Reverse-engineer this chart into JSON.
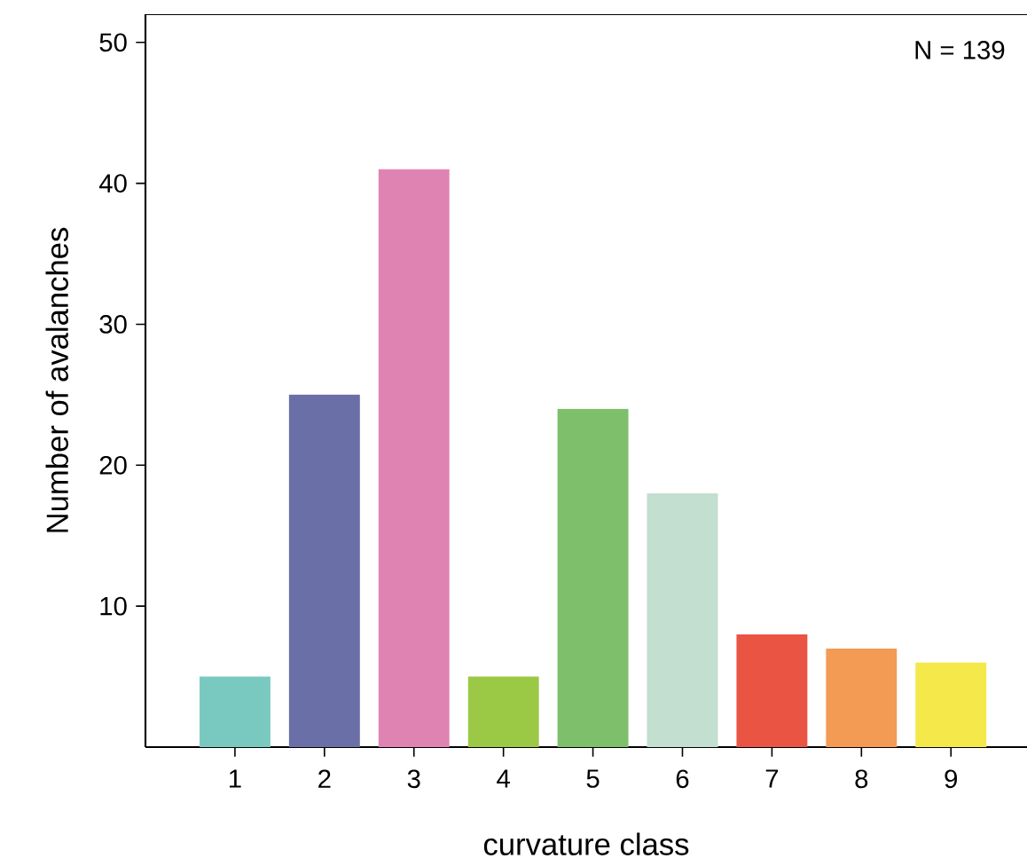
{
  "chart_data": {
    "type": "bar",
    "xlabel": "curvature class",
    "ylabel": "Number of avalanches",
    "categories": [
      "1",
      "2",
      "3",
      "4",
      "5",
      "6",
      "7",
      "8",
      "9"
    ],
    "values": [
      5,
      25,
      41,
      5,
      24,
      18,
      8,
      7,
      6
    ],
    "colors": [
      "#7ac9c1",
      "#6a6fa8",
      "#df84b2",
      "#9bc845",
      "#7dbf6a",
      "#c2dfd0",
      "#e95443",
      "#f39a55",
      "#f5e84a"
    ],
    "ylim": [
      0,
      52
    ],
    "yticks": [
      10,
      20,
      30,
      40,
      50
    ],
    "grid": false,
    "annotations": [
      "N = 139"
    ]
  }
}
